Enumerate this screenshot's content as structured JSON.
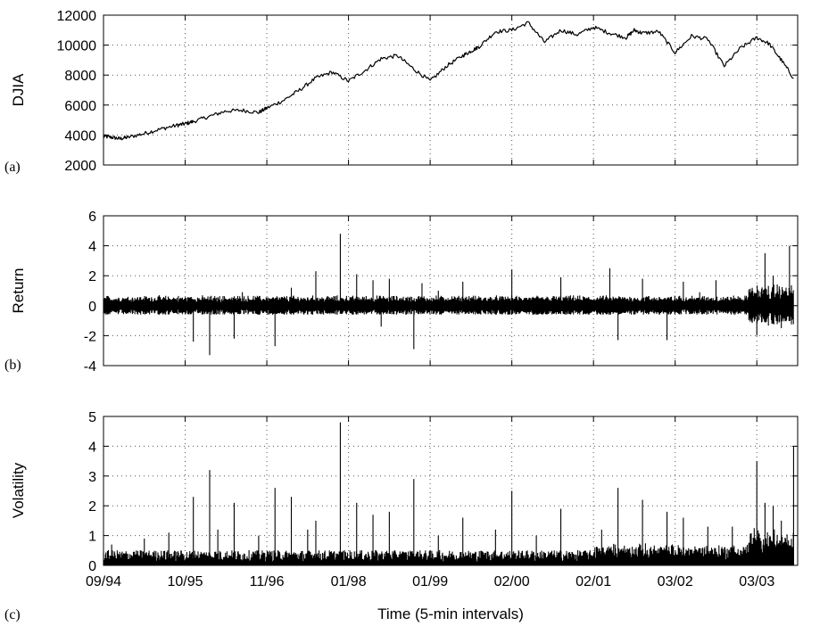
{
  "chart_data": [
    {
      "type": "line",
      "panel_label": "(a)",
      "ylabel": "DJIA",
      "xlabel": "",
      "ylim": [
        2000,
        12000
      ],
      "yticks": [
        "12000",
        "10000",
        "8000",
        "6000",
        "4000",
        "2000"
      ],
      "xlim": [
        0,
        8.5
      ],
      "xticks": [
        "09/94",
        "10/95",
        "11/96",
        "01/98",
        "01/99",
        "02/00",
        "02/01",
        "03/02",
        "03/03"
      ],
      "grid": true,
      "series": [
        {
          "x": [
            0,
            0.1,
            0.2,
            0.3,
            0.5,
            0.7,
            0.9,
            1.0,
            1.1,
            1.3,
            1.5,
            1.7,
            1.9,
            2.0,
            2.2,
            2.4,
            2.6,
            2.8,
            3.0,
            3.2,
            3.4,
            3.6,
            3.8,
            4.0,
            4.2,
            4.4,
            4.5,
            4.6,
            4.8,
            5.0,
            5.2,
            5.4,
            5.6,
            5.8,
            6.0,
            6.2,
            6.4,
            6.5,
            6.6,
            6.8,
            7.0,
            7.2,
            7.4,
            7.6,
            7.8,
            8.0,
            8.15,
            8.3,
            8.45
          ],
          "y": [
            3900,
            3850,
            3750,
            3850,
            4100,
            4400,
            4650,
            4750,
            4900,
            5250,
            5600,
            5650,
            5500,
            5800,
            6300,
            7000,
            7800,
            8200,
            7600,
            8300,
            9100,
            9300,
            8400,
            7600,
            8600,
            9300,
            9600,
            9900,
            10900,
            11000,
            11500,
            10200,
            11000,
            10700,
            11200,
            10800,
            10500,
            11000,
            10800,
            10900,
            9500,
            10600,
            10400,
            8600,
            9800,
            10500,
            10100,
            9000,
            7800
          ]
        }
      ]
    },
    {
      "type": "line",
      "panel_label": "(b)",
      "ylabel": "Return",
      "xlabel": "",
      "ylim": [
        -4,
        6
      ],
      "yticks": [
        "6",
        "4",
        "2",
        "0",
        "-2",
        "-4"
      ],
      "xlim": [
        0,
        8.5
      ],
      "xticks": [],
      "grid": true,
      "series": [
        {
          "band_range": [
            -0.5,
            0.6
          ],
          "spikes_x": [
            1.1,
            1.3,
            1.6,
            1.7,
            2.1,
            2.3,
            2.6,
            2.9,
            3.1,
            3.3,
            3.4,
            3.5,
            3.8,
            3.9,
            4.1,
            4.4,
            5.0,
            5.6,
            6.2,
            6.3,
            6.6,
            6.9,
            7.1,
            7.3,
            7.5,
            8.0,
            8.1,
            8.2,
            8.3,
            8.4
          ],
          "spikes_y": [
            -2.4,
            -3.3,
            -2.2,
            0.9,
            -2.7,
            1.2,
            2.3,
            4.8,
            2.1,
            1.7,
            -1.4,
            1.8,
            -2.9,
            1.5,
            1.0,
            1.6,
            2.4,
            1.9,
            2.5,
            -2.3,
            1.8,
            -2.3,
            1.6,
            0.9,
            1.7,
            -2.0,
            3.5,
            2.0,
            -1.5,
            4.0
          ]
        }
      ]
    },
    {
      "type": "line",
      "panel_label": "(c)",
      "ylabel": "Volatility",
      "xlabel": "Time (5-min intervals)",
      "ylim": [
        0,
        5
      ],
      "yticks": [
        "5",
        "4",
        "3",
        "2",
        "1",
        "0"
      ],
      "xlim": [
        0,
        8.5
      ],
      "xticks": [
        "09/94",
        "10/95",
        "11/96",
        "01/98",
        "01/99",
        "02/00",
        "02/01",
        "03/02",
        "03/03"
      ],
      "grid": true,
      "series": [
        {
          "baseline_level": 0.3,
          "spikes_x": [
            0.1,
            0.5,
            0.8,
            1.1,
            1.3,
            1.4,
            1.6,
            1.9,
            2.1,
            2.3,
            2.5,
            2.6,
            2.9,
            3.1,
            3.3,
            3.5,
            3.8,
            4.1,
            4.4,
            4.8,
            5.0,
            5.3,
            5.6,
            6.1,
            6.3,
            6.6,
            6.9,
            7.1,
            7.4,
            7.7,
            8.0,
            8.1,
            8.2,
            8.3,
            8.45
          ],
          "spikes_y": [
            0.7,
            0.9,
            1.1,
            2.3,
            3.2,
            1.2,
            2.1,
            1.0,
            2.6,
            2.3,
            1.2,
            1.5,
            4.8,
            2.1,
            1.7,
            1.8,
            2.9,
            1.0,
            1.6,
            1.2,
            2.5,
            1.0,
            1.9,
            1.2,
            2.6,
            2.2,
            1.8,
            1.6,
            1.3,
            1.3,
            3.5,
            2.1,
            2.0,
            1.5,
            4.0
          ]
        }
      ]
    }
  ]
}
